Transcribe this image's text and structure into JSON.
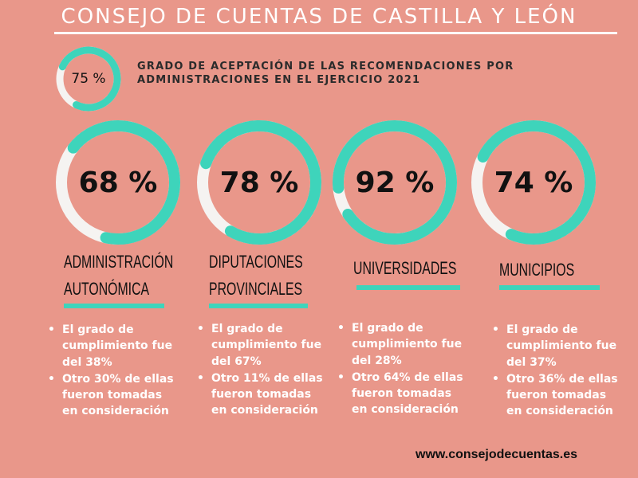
{
  "header": {
    "title": "CONSEJO DE CUENTAS DE CASTILLA Y LEÓN"
  },
  "summary": {
    "value": 75,
    "value_label": "75 %",
    "text_line1": "GRADO DE ACEPTACIÓN DE LAS RECOMENDACIONES POR",
    "text_line2": "ADMINISTRACIONES EN EL EJERCICIO 2021"
  },
  "colors": {
    "background": "#e9978a",
    "ring_fill": "#3ed4bb",
    "ring_track": "#f5f3f1",
    "text_dark": "#111111",
    "text_light": "#ffffff"
  },
  "chart_data": {
    "type": "pie",
    "title": "GRADO DE ACEPTACIÓN DE LAS RECOMENDACIONES POR ADMINISTRACIONES EN EL EJERCICIO 2021",
    "overall": {
      "value": 75,
      "label": "75 %"
    },
    "categories": [
      "ADMINISTRACIÓN AUTONÓMICA",
      "DIPUTACIONES PROVINCIALES",
      "UNIVERSIDADES",
      "MUNICIPIOS"
    ],
    "values": [
      68,
      78,
      92,
      74
    ],
    "unit": "%"
  },
  "cards": [
    {
      "value": 68,
      "value_label": "68 %",
      "title_lines": [
        "ADMINISTRACIÓN",
        "AUTONÓMICA"
      ],
      "bullets": [
        "El grado de cumplimiento fue del 38%",
        "Otro 30% de ellas fueron tomadas en consideración"
      ]
    },
    {
      "value": 78,
      "value_label": "78 %",
      "title_lines": [
        "DIPUTACIONES",
        "PROVINCIALES"
      ],
      "bullets": [
        "El grado de cumplimiento fue del 67%",
        "Otro 11% de ellas fueron tomadas en consideración"
      ]
    },
    {
      "value": 92,
      "value_label": "92 %",
      "title_lines": [
        "UNIVERSIDADES"
      ],
      "bullets": [
        "El grado de cumplimiento fue del 28%",
        "Otro 64% de ellas fueron tomadas en consideración"
      ]
    },
    {
      "value": 74,
      "value_label": "74 %",
      "title_lines": [
        "MUNICIPIOS"
      ],
      "bullets": [
        "El grado de cumplimiento fue del 37%",
        "Otro 36% de ellas fueron tomadas en consideración"
      ]
    }
  ],
  "footer": {
    "url": "www.consejodecuentas.es"
  }
}
